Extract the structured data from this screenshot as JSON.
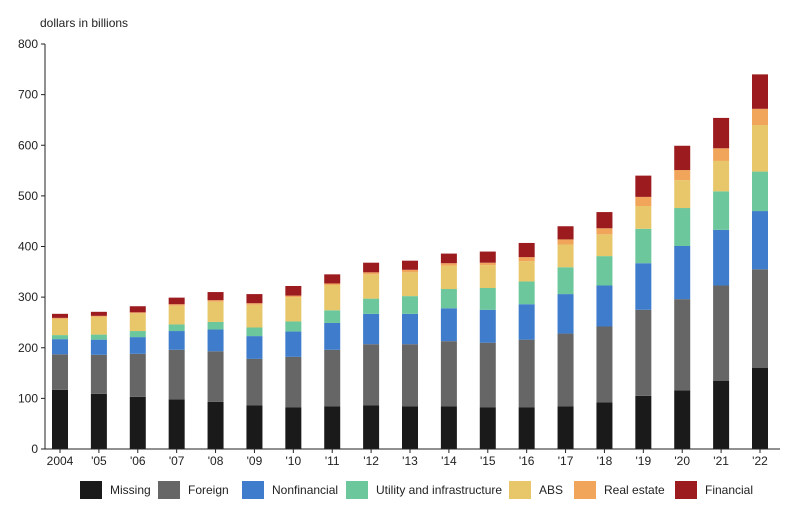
{
  "chart_data": {
    "type": "bar",
    "stacked": true,
    "title": "",
    "ylabel": "dollars in billions",
    "xlabel": "",
    "ylim": [
      0,
      800
    ],
    "yticks": [
      "0",
      "100",
      "200",
      "300",
      "400",
      "500",
      "600",
      "700",
      "800"
    ],
    "categories": [
      "2004",
      "'05",
      "'06",
      "'07",
      "'08",
      "'09",
      "'10",
      "'11",
      "'12",
      "'13",
      "'14",
      "'15",
      "'16",
      "'17",
      "'18",
      "'19",
      "'20",
      "'21",
      "'22"
    ],
    "legend_position": "bottom",
    "grid": false,
    "series": [
      {
        "name": "Missing",
        "color": "#1a1a1a",
        "values": [
          117,
          109,
          103,
          98,
          93,
          86,
          82,
          84,
          86,
          84,
          84,
          82,
          82,
          84,
          92,
          105,
          116,
          135,
          160
        ]
      },
      {
        "name": "Foreign",
        "color": "#666666",
        "values": [
          70,
          77,
          85,
          98,
          100,
          92,
          100,
          112,
          121,
          123,
          129,
          128,
          134,
          144,
          150,
          170,
          180,
          188,
          195
        ]
      },
      {
        "name": "Nonfinancial",
        "color": "#3f7ccb",
        "values": [
          30,
          30,
          33,
          37,
          43,
          45,
          50,
          53,
          60,
          60,
          65,
          65,
          70,
          78,
          81,
          92,
          105,
          110,
          115
        ]
      },
      {
        "name": "Utility and infrastructure",
        "color": "#6cc79c",
        "values": [
          8,
          10,
          12,
          13,
          15,
          17,
          20,
          25,
          30,
          35,
          38,
          43,
          45,
          53,
          58,
          68,
          75,
          76,
          78
        ]
      },
      {
        "name": "ABS",
        "color": "#e8c76b",
        "values": [
          32,
          35,
          35,
          37,
          40,
          45,
          48,
          50,
          48,
          47,
          46,
          45,
          40,
          45,
          43,
          45,
          55,
          60,
          92
        ]
      },
      {
        "name": "Real estate",
        "color": "#f0a55a",
        "values": [
          2,
          2,
          2,
          3,
          3,
          3,
          3,
          3,
          4,
          5,
          5,
          5,
          8,
          10,
          12,
          18,
          20,
          25,
          32
        ]
      },
      {
        "name": "Financial",
        "color": "#9b1b1e",
        "values": [
          8,
          8,
          12,
          13,
          16,
          18,
          19,
          18,
          19,
          18,
          19,
          22,
          28,
          26,
          32,
          42,
          48,
          60,
          68
        ]
      }
    ]
  }
}
